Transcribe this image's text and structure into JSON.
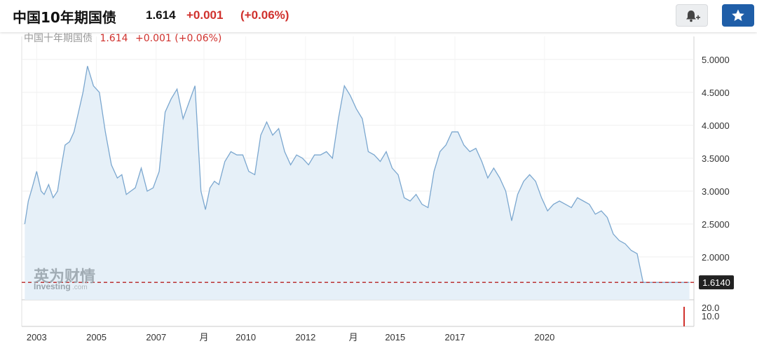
{
  "header": {
    "title": "中国10年期国债",
    "price": "1.614",
    "change": "+0.001",
    "change_pct": "(+0.06%)"
  },
  "ghost_header": {
    "title": "中国十年期国债",
    "price": "1.614",
    "change": "+0.001 (+0.06%)"
  },
  "buttons": {
    "alert_icon": "bell-plus-icon",
    "watchlist_icon": "star-icon"
  },
  "watermark": {
    "cn": "英为财情",
    "en": "Investing",
    "suffix": ".com"
  },
  "colors": {
    "line": "#7ba7cf",
    "fill": "#e6f0f8",
    "up": "#d0312d",
    "accent": "#1f5ea8"
  },
  "chart_data": {
    "type": "area",
    "x_ticks": [
      {
        "x": 2003.0,
        "label": "2003"
      },
      {
        "x": 2005.0,
        "label": "2005"
      },
      {
        "x": 2007.0,
        "label": "2007"
      },
      {
        "x": 2008.6,
        "label": "月"
      },
      {
        "x": 2010.0,
        "label": "2010"
      },
      {
        "x": 2012.0,
        "label": "2012"
      },
      {
        "x": 2013.6,
        "label": "月"
      },
      {
        "x": 2015.0,
        "label": "2015"
      },
      {
        "x": 2017.0,
        "label": "2017"
      },
      {
        "x": 2020.0,
        "label": "2020"
      }
    ],
    "y_ticks": [
      2.0,
      2.5,
      3.0,
      3.5,
      4.0,
      4.5,
      5.0
    ],
    "y_tick_labels": [
      "2.0000",
      "2.5000",
      "3.0000",
      "3.5000",
      "4.0000",
      "4.5000",
      "5.0000"
    ],
    "ylim": [
      1.35,
      5.35
    ],
    "xlim": [
      2002.5,
      2025.0
    ],
    "current": {
      "value": 1.614,
      "label": "1.6140"
    },
    "volume_labels": [
      "20.0",
      "10.0"
    ],
    "series": [
      {
        "x": [
          2002.6,
          2002.72,
          2002.85,
          2003.0,
          2003.15,
          2003.25,
          2003.4,
          2003.55,
          2003.7,
          2003.8,
          2003.95,
          2004.1,
          2004.25,
          2004.4,
          2004.55,
          2004.7,
          2004.9,
          2005.1,
          2005.3,
          2005.5,
          2005.7,
          2005.85,
          2006.0,
          2006.15,
          2006.3,
          2006.5,
          2006.7,
          2006.9,
          2007.1,
          2007.3,
          2007.5,
          2007.7,
          2007.9,
          2008.1,
          2008.3,
          2008.5,
          2008.65,
          2008.8,
          2008.95,
          2009.1,
          2009.3,
          2009.5,
          2009.7,
          2009.9,
          2010.1,
          2010.3,
          2010.5,
          2010.7,
          2010.9,
          2011.1,
          2011.3,
          2011.5,
          2011.7,
          2011.9,
          2012.1,
          2012.3,
          2012.5,
          2012.7,
          2012.9,
          2013.1,
          2013.3,
          2013.5,
          2013.7,
          2013.9,
          2014.1,
          2014.3,
          2014.5,
          2014.7,
          2014.9,
          2015.1,
          2015.3,
          2015.5,
          2015.7,
          2015.9,
          2016.1,
          2016.3,
          2016.5,
          2016.7,
          2016.9,
          2017.1,
          2017.3,
          2017.5,
          2017.7,
          2017.9,
          2018.1,
          2018.3,
          2018.5,
          2018.7,
          2018.9,
          2019.1,
          2019.3,
          2019.5,
          2019.7,
          2019.9,
          2020.1,
          2020.3,
          2020.5,
          2020.7,
          2020.9,
          2021.1,
          2021.3,
          2021.5,
          2021.7,
          2021.9,
          2022.1,
          2022.3,
          2022.5,
          2022.7,
          2022.9,
          2023.1,
          2023.3,
          2023.5,
          2023.7,
          2023.9,
          2024.1,
          2024.3,
          2024.5,
          2024.7,
          2024.85
        ],
        "y": [
          2.5,
          2.85,
          3.05,
          3.3,
          3.0,
          2.95,
          3.1,
          2.9,
          3.0,
          3.3,
          3.7,
          3.75,
          3.9,
          4.2,
          4.5,
          4.9,
          4.6,
          4.5,
          3.9,
          3.4,
          3.2,
          3.25,
          2.95,
          3.0,
          3.05,
          3.35,
          3.0,
          3.05,
          3.3,
          4.2,
          4.4,
          4.55,
          4.1,
          4.35,
          4.6,
          3.0,
          2.72,
          3.05,
          3.15,
          3.1,
          3.45,
          3.6,
          3.55,
          3.55,
          3.3,
          3.25,
          3.85,
          4.05,
          3.85,
          3.95,
          3.6,
          3.4,
          3.55,
          3.5,
          3.4,
          3.55,
          3.55,
          3.6,
          3.5,
          4.1,
          4.6,
          4.45,
          4.25,
          4.1,
          3.6,
          3.55,
          3.45,
          3.6,
          3.35,
          3.25,
          2.9,
          2.85,
          2.95,
          2.8,
          2.75,
          3.3,
          3.6,
          3.7,
          3.9,
          3.9,
          3.7,
          3.6,
          3.65,
          3.45,
          3.2,
          3.35,
          3.2,
          3.0,
          2.55,
          2.95,
          3.15,
          3.25,
          3.15,
          2.9,
          2.7,
          2.8,
          2.85,
          2.8,
          2.75,
          2.9,
          2.85,
          2.8,
          2.65,
          2.7,
          2.6,
          2.35,
          2.25,
          2.2,
          2.1,
          2.05,
          1.614,
          1.614,
          1.614,
          1.614,
          1.614,
          1.614,
          1.614,
          1.614,
          1.614
        ]
      }
    ]
  }
}
